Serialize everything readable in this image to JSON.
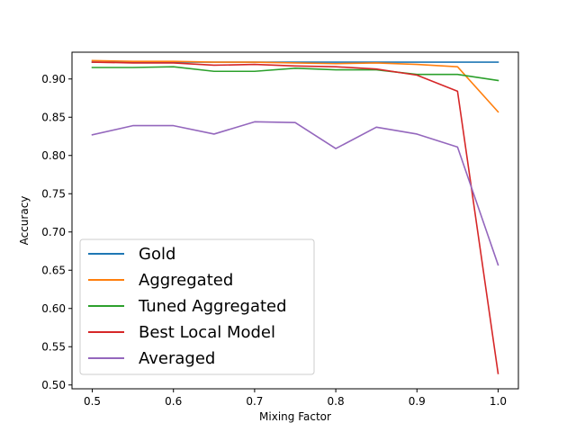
{
  "chart_data": {
    "type": "line",
    "title": "",
    "xlabel": "Mixing Factor",
    "ylabel": "Accuracy",
    "xlim": [
      0.475,
      1.025
    ],
    "ylim": [
      0.495,
      0.935
    ],
    "xticks": [
      0.5,
      0.6,
      0.7,
      0.8,
      0.9,
      1.0
    ],
    "xtick_labels": [
      "0.5",
      "0.6",
      "0.7",
      "0.8",
      "0.9",
      "1.0"
    ],
    "yticks": [
      0.5,
      0.55,
      0.6,
      0.65,
      0.7,
      0.75,
      0.8,
      0.85,
      0.9
    ],
    "ytick_labels": [
      "0.50",
      "0.55",
      "0.60",
      "0.65",
      "0.70",
      "0.75",
      "0.80",
      "0.85",
      "0.90"
    ],
    "grid": false,
    "legend_position": "lower-left",
    "x": [
      0.5,
      0.55,
      0.6,
      0.65,
      0.7,
      0.75,
      0.8,
      0.85,
      0.9,
      0.95,
      1.0
    ],
    "series": [
      {
        "name": "Gold",
        "color": "#1f77b4",
        "values": [
          0.922,
          0.922,
          0.922,
          0.922,
          0.922,
          0.922,
          0.922,
          0.922,
          0.922,
          0.922,
          0.922
        ]
      },
      {
        "name": "Aggregated",
        "color": "#ff7f0e",
        "values": [
          0.924,
          0.923,
          0.923,
          0.922,
          0.922,
          0.921,
          0.92,
          0.921,
          0.919,
          0.916,
          0.857
        ]
      },
      {
        "name": "Tuned Aggregated",
        "color": "#2ca02c",
        "values": [
          0.915,
          0.915,
          0.916,
          0.91,
          0.91,
          0.914,
          0.912,
          0.912,
          0.906,
          0.906,
          0.898
        ]
      },
      {
        "name": "Best Local Model",
        "color": "#d62728",
        "values": [
          0.922,
          0.921,
          0.921,
          0.918,
          0.919,
          0.917,
          0.916,
          0.913,
          0.905,
          0.884,
          0.515
        ]
      },
      {
        "name": "Averaged",
        "color": "#9467bd",
        "values": [
          0.827,
          0.839,
          0.839,
          0.828,
          0.844,
          0.843,
          0.809,
          0.837,
          0.828,
          0.811,
          0.657
        ]
      }
    ]
  }
}
